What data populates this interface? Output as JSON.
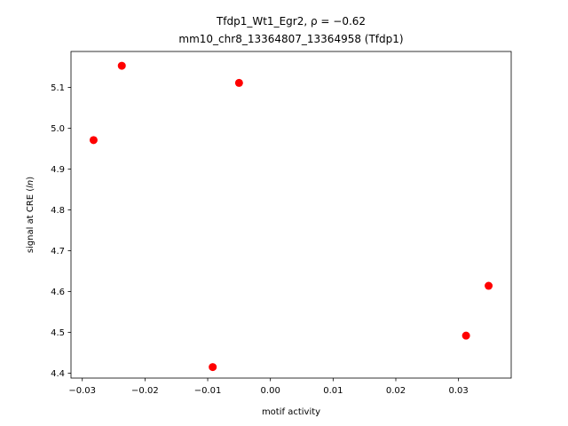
{
  "chart_data": {
    "type": "scatter",
    "title_line1": "Tfdp1_Wt1_Egr2, ρ = −0.62",
    "title_line2": "mm10_chr8_13364807_13364958 (Tfdp1)",
    "xlabel": "motif activity",
    "ylabel_prefix": "signal at CRE (",
    "ylabel_italic": "ln",
    "ylabel_suffix": ")",
    "xlim": [
      -0.0318,
      0.0384
    ],
    "ylim": [
      4.388,
      5.188
    ],
    "xticks": [
      -0.03,
      -0.02,
      -0.01,
      0.0,
      0.01,
      0.02,
      0.03
    ],
    "xtick_labels": [
      "−0.03",
      "−0.02",
      "−0.01",
      "0.00",
      "0.01",
      "0.02",
      "0.03"
    ],
    "yticks": [
      4.4,
      4.5,
      4.6,
      4.7,
      4.8,
      4.9,
      5.0,
      5.1
    ],
    "ytick_labels": [
      "4.4",
      "4.5",
      "4.6",
      "4.7",
      "4.8",
      "4.9",
      "5.0",
      "5.1"
    ],
    "point_color": "#ff0000",
    "points": [
      {
        "x": -0.0282,
        "y": 4.971
      },
      {
        "x": -0.0237,
        "y": 5.153
      },
      {
        "x": -0.0092,
        "y": 4.415
      },
      {
        "x": -0.005,
        "y": 5.111
      },
      {
        "x": 0.0312,
        "y": 4.492
      },
      {
        "x": 0.0348,
        "y": 4.614
      }
    ],
    "grid": false,
    "legend": "none"
  }
}
